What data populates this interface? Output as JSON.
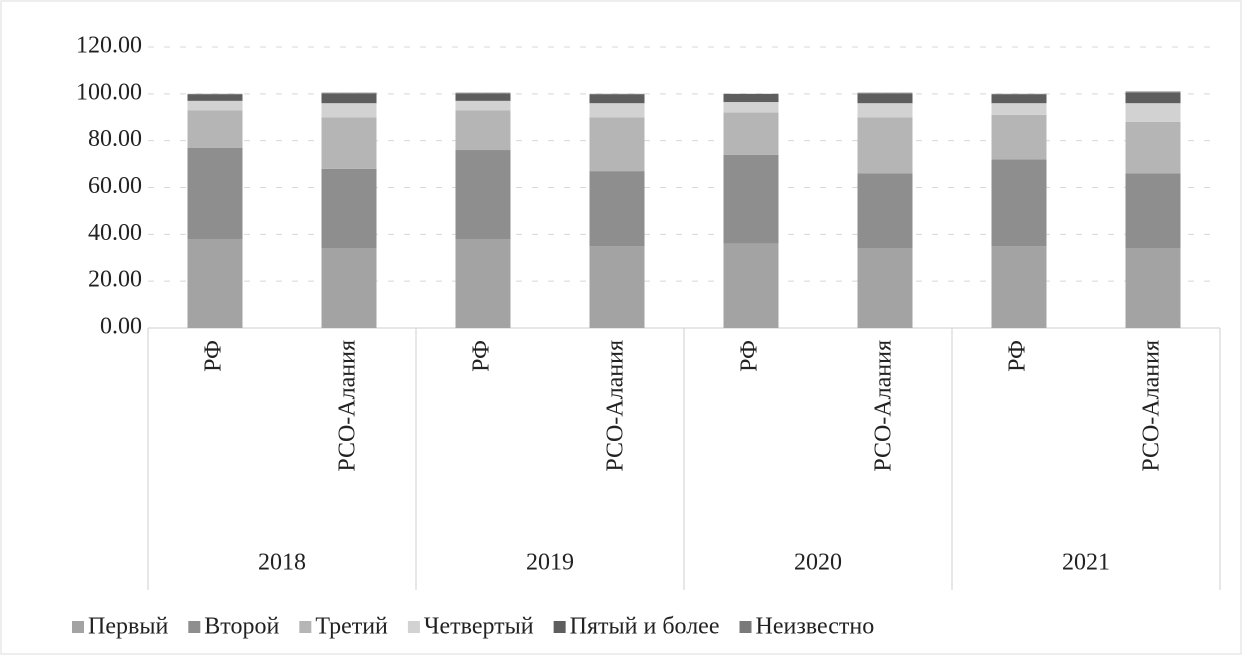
{
  "chart_data": {
    "type": "stacked_bar",
    "categories": [
      "РФ",
      "РСО-Алания",
      "РФ",
      "РСО-Алания",
      "РФ",
      "РСО-Алания",
      "РФ",
      "РСО-Алания"
    ],
    "groups": [
      "2018",
      "2019",
      "2020",
      "2021"
    ],
    "series": [
      {
        "name": "Первый",
        "color": "#a3a3a3",
        "values": [
          38,
          34,
          38,
          35,
          36,
          34,
          35,
          34
        ]
      },
      {
        "name": "Второй",
        "color": "#8e8e8e",
        "values": [
          39,
          34,
          38,
          32,
          38,
          32,
          37,
          32
        ]
      },
      {
        "name": "Третий",
        "color": "#b5b5b5",
        "values": [
          16,
          22,
          17,
          23,
          18,
          24,
          19,
          22
        ]
      },
      {
        "name": "Четвертый",
        "color": "#d2d2d2",
        "values": [
          4,
          6,
          4,
          6,
          4.5,
          6,
          5,
          8
        ]
      },
      {
        "name": "Пятый и более",
        "color": "#5e5e5e",
        "values": [
          2.5,
          4,
          3,
          3.5,
          3.5,
          4,
          3.5,
          4.5
        ]
      },
      {
        "name": "Неизвестно",
        "color": "#7a7a7a",
        "values": [
          0.5,
          0.5,
          0.5,
          0.5,
          0,
          0.5,
          0.5,
          0.5
        ]
      }
    ],
    "ylim": [
      0,
      120
    ],
    "yticks": [
      {
        "value": 0,
        "label": "0.00"
      },
      {
        "value": 20,
        "label": "20.00"
      },
      {
        "value": 40,
        "label": "40.00"
      },
      {
        "value": 60,
        "label": "60.00"
      },
      {
        "value": 80,
        "label": "80.00"
      },
      {
        "value": 100,
        "label": "100.00"
      },
      {
        "value": 120,
        "label": "120.00"
      }
    ],
    "grid": true,
    "legend": "bottom"
  }
}
